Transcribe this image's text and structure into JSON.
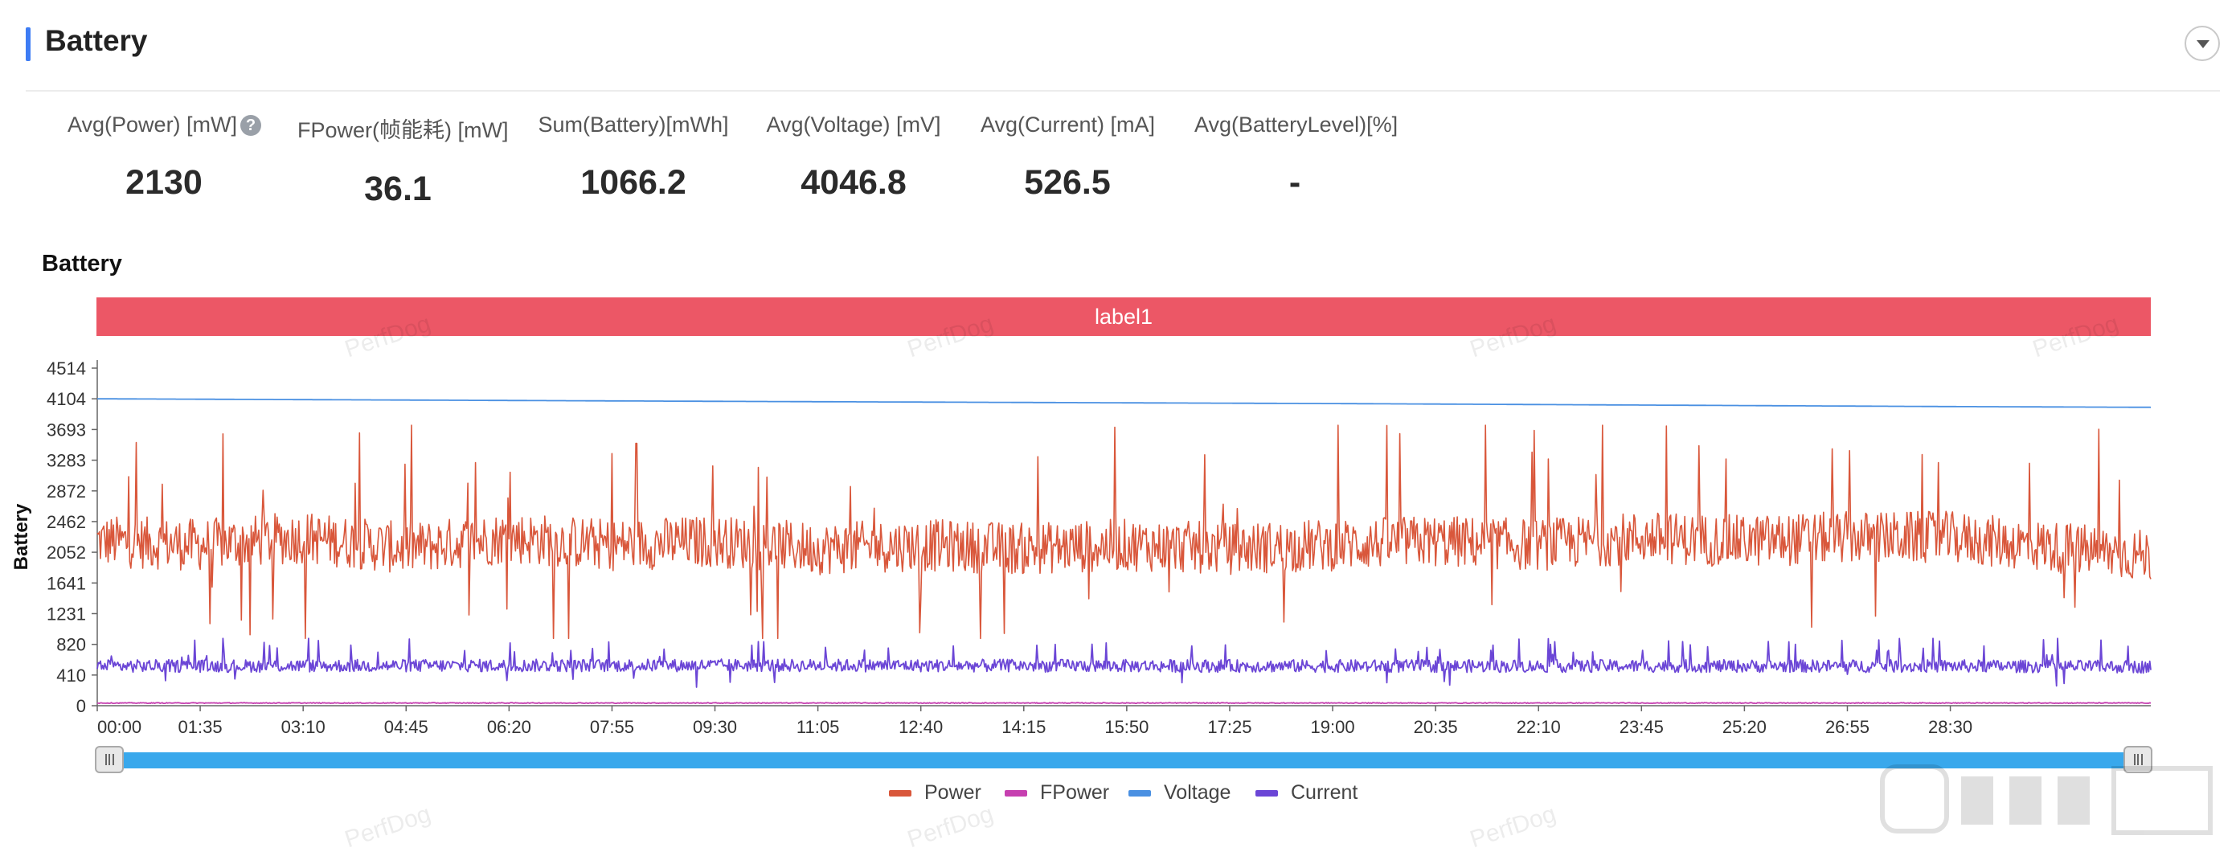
{
  "header": {
    "title": "Battery"
  },
  "stats": [
    {
      "label": "Avg(Power) [mW]",
      "value": "2130",
      "help": true
    },
    {
      "label": "FPower(帧能耗) [mW]",
      "value": "36.1"
    },
    {
      "label": "Sum(Battery)[mWh]",
      "value": "1066.2"
    },
    {
      "label": "Avg(Voltage) [mV]",
      "value": "4046.8"
    },
    {
      "label": "Avg(Current) [mA]",
      "value": "526.5"
    },
    {
      "label": "Avg(BatteryLevel)[%]",
      "value": "-"
    }
  ],
  "watermark": "PerfDog",
  "chart_data": {
    "type": "line",
    "title": "Battery",
    "band_label": "label1",
    "ylabel": "Battery",
    "xlabel": "",
    "ylim": [
      0,
      4514
    ],
    "yticks": [
      0,
      410,
      820,
      1231,
      1641,
      2052,
      2462,
      2872,
      3283,
      3693,
      4104,
      4514
    ],
    "xlim_seconds": [
      0,
      1895
    ],
    "xticks": [
      "00:00",
      "01:35",
      "03:10",
      "04:45",
      "06:20",
      "07:55",
      "09:30",
      "11:05",
      "12:40",
      "14:15",
      "15:50",
      "17:25",
      "19:00",
      "20:35",
      "22:10",
      "23:45",
      "25:20",
      "26:55",
      "28:30"
    ],
    "grid": false,
    "legend_position": "bottom",
    "series": [
      {
        "name": "Power",
        "color": "#d9573b",
        "approx_mean": 2150,
        "approx_range": [
          900,
          3750
        ],
        "keypoints": [
          [
            "00:00",
            2200
          ],
          [
            "01:35",
            2150
          ],
          [
            "03:10",
            2250
          ],
          [
            "04:45",
            2100
          ],
          [
            "06:20",
            2250
          ],
          [
            "07:55",
            2150
          ],
          [
            "09:30",
            2200
          ],
          [
            "11:05",
            2100
          ],
          [
            "12:40",
            2150
          ],
          [
            "14:15",
            2100
          ],
          [
            "15:50",
            2150
          ],
          [
            "17:25",
            2100
          ],
          [
            "19:00",
            2150
          ],
          [
            "20:35",
            2200
          ],
          [
            "22:10",
            2150
          ],
          [
            "23:45",
            2250
          ],
          [
            "25:20",
            2200
          ],
          [
            "26:55",
            2250
          ],
          [
            "28:30",
            2250
          ],
          [
            "31:35",
            2000
          ]
        ]
      },
      {
        "name": "FPower",
        "color": "#c63fb0",
        "approx_mean": 36,
        "keypoints": [
          [
            "00:00",
            36
          ],
          [
            "31:35",
            36
          ]
        ]
      },
      {
        "name": "Voltage",
        "color": "#4a90e2",
        "keypoints": [
          [
            "00:00",
            4104
          ],
          [
            "09:30",
            4070
          ],
          [
            "19:00",
            4040
          ],
          [
            "28:30",
            4000
          ],
          [
            "31:35",
            3990
          ]
        ]
      },
      {
        "name": "Current",
        "color": "#6b46d6",
        "approx_mean": 530,
        "approx_range": [
          230,
          900
        ],
        "keypoints": [
          [
            "00:00",
            530
          ],
          [
            "09:30",
            540
          ],
          [
            "19:00",
            530
          ],
          [
            "28:30",
            530
          ],
          [
            "31:35",
            520
          ]
        ]
      }
    ]
  }
}
